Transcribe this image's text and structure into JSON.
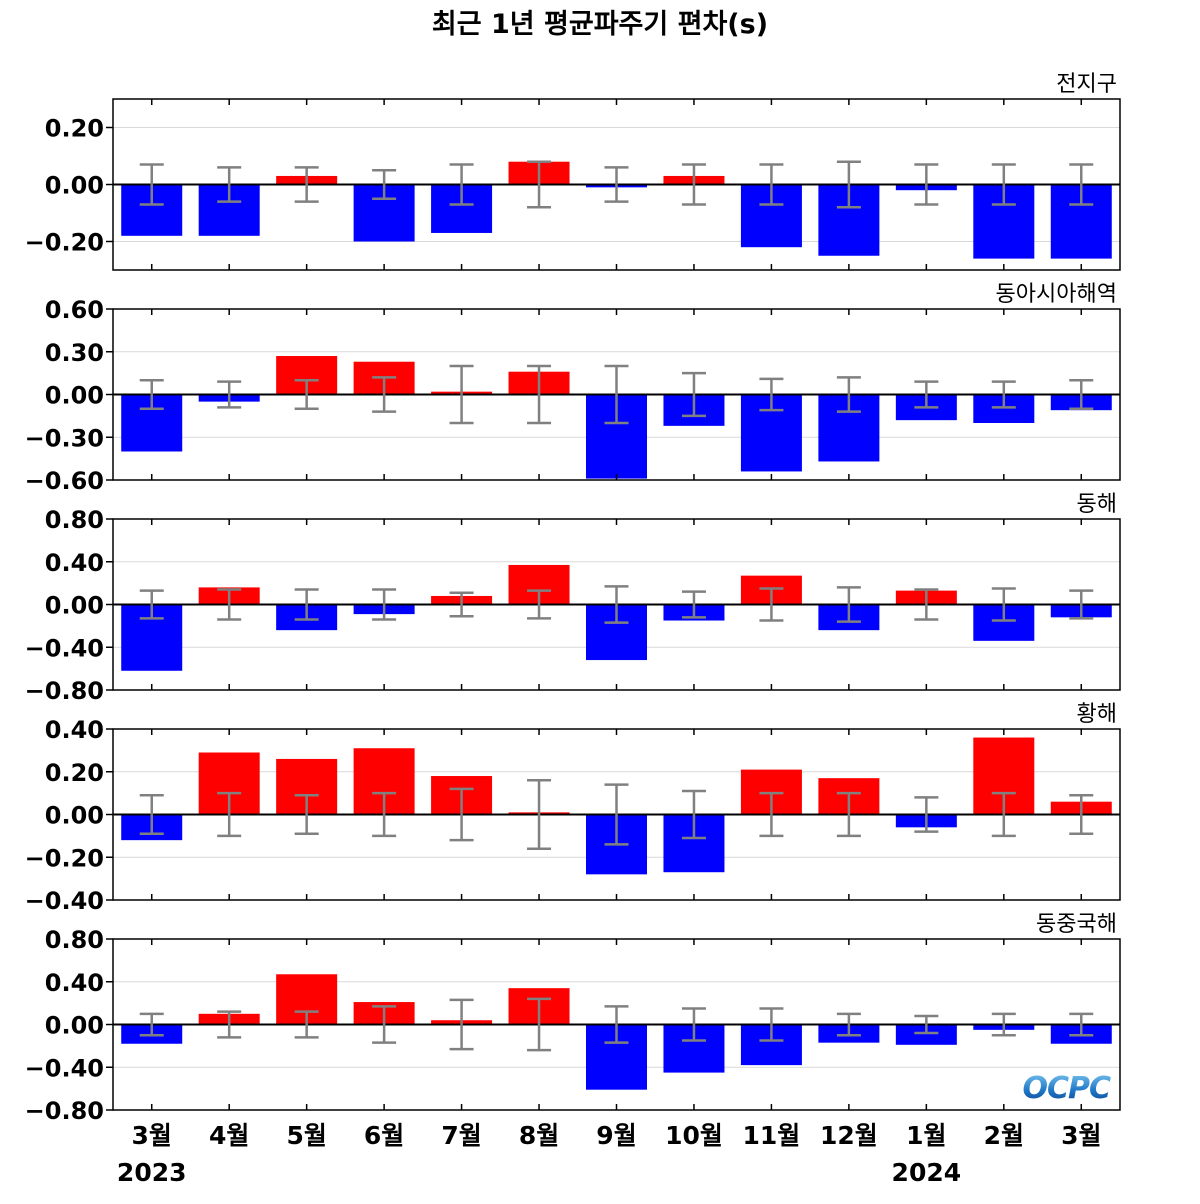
{
  "chart_data": {
    "type": "bar",
    "title": "최근 1년 평균파주기 편차(s)",
    "categories": [
      "3월",
      "4월",
      "5월",
      "6월",
      "7월",
      "8월",
      "9월",
      "10월",
      "11월",
      "12월",
      "1월",
      "2월",
      "3월"
    ],
    "year_labels": [
      {
        "label": "2023",
        "category_index": 0
      },
      {
        "label": "2024",
        "category_index": 10
      }
    ],
    "colors": {
      "positive": "#ff0000",
      "negative": "#0000ff",
      "error_bar": "#808080",
      "zero_line": "#000000",
      "grid": "#d9d9d9"
    },
    "logo_text": "OCPC",
    "panels": [
      {
        "label": "전지구",
        "ylim": [
          -0.3,
          0.3
        ],
        "ticks": [
          0.2,
          0.0,
          -0.2
        ],
        "tick_labels": [
          "0.20",
          "0.00",
          "−0.20"
        ],
        "values": [
          -0.18,
          -0.18,
          0.03,
          -0.2,
          -0.17,
          0.08,
          -0.01,
          0.03,
          -0.22,
          -0.25,
          -0.02,
          -0.26,
          -0.26
        ],
        "errors": [
          0.07,
          0.06,
          0.06,
          0.05,
          0.07,
          0.08,
          0.06,
          0.07,
          0.07,
          0.08,
          0.07,
          0.07,
          0.07
        ]
      },
      {
        "label": "동아시아해역",
        "ylim": [
          -0.6,
          0.6
        ],
        "ticks": [
          0.6,
          0.3,
          0.0,
          -0.3,
          -0.6
        ],
        "tick_labels": [
          "0.60",
          "0.30",
          "0.00",
          "−0.30",
          "−0.60"
        ],
        "values": [
          -0.4,
          -0.05,
          0.27,
          0.23,
          0.02,
          0.16,
          -0.59,
          -0.22,
          -0.54,
          -0.47,
          -0.18,
          -0.2,
          -0.11
        ],
        "errors": [
          0.1,
          0.09,
          0.1,
          0.12,
          0.2,
          0.2,
          0.2,
          0.15,
          0.11,
          0.12,
          0.09,
          0.09,
          0.1
        ]
      },
      {
        "label": "동해",
        "ylim": [
          -0.8,
          0.8
        ],
        "ticks": [
          0.8,
          0.4,
          0.0,
          -0.4,
          -0.8
        ],
        "tick_labels": [
          "0.80",
          "0.40",
          "0.00",
          "−0.40",
          "−0.80"
        ],
        "values": [
          -0.62,
          0.16,
          -0.24,
          -0.09,
          0.08,
          0.37,
          -0.52,
          -0.15,
          0.27,
          -0.24,
          0.13,
          -0.34,
          -0.12
        ],
        "errors": [
          0.13,
          0.14,
          0.14,
          0.14,
          0.11,
          0.13,
          0.17,
          0.12,
          0.15,
          0.16,
          0.14,
          0.15,
          0.13
        ]
      },
      {
        "label": "황해",
        "ylim": [
          -0.4,
          0.4
        ],
        "ticks": [
          0.4,
          0.2,
          0.0,
          -0.2,
          -0.4
        ],
        "tick_labels": [
          "0.40",
          "0.20",
          "0.00",
          "−0.20",
          "−0.40"
        ],
        "values": [
          -0.12,
          0.29,
          0.26,
          0.31,
          0.18,
          0.01,
          -0.28,
          -0.27,
          0.21,
          0.17,
          -0.06,
          0.36,
          0.06
        ],
        "errors": [
          0.09,
          0.1,
          0.09,
          0.1,
          0.12,
          0.16,
          0.14,
          0.11,
          0.1,
          0.1,
          0.08,
          0.1,
          0.09
        ]
      },
      {
        "label": "동중국해",
        "ylim": [
          -0.8,
          0.8
        ],
        "ticks": [
          0.8,
          0.4,
          0.0,
          -0.4,
          -0.8
        ],
        "tick_labels": [
          "0.80",
          "0.40",
          "0.00",
          "−0.40",
          "−0.80"
        ],
        "values": [
          -0.18,
          0.1,
          0.47,
          0.21,
          0.04,
          0.34,
          -0.61,
          -0.45,
          -0.38,
          -0.17,
          -0.19,
          -0.05,
          -0.18
        ],
        "errors": [
          0.1,
          0.12,
          0.12,
          0.17,
          0.23,
          0.24,
          0.17,
          0.15,
          0.15,
          0.1,
          0.08,
          0.1,
          0.1
        ]
      }
    ]
  }
}
